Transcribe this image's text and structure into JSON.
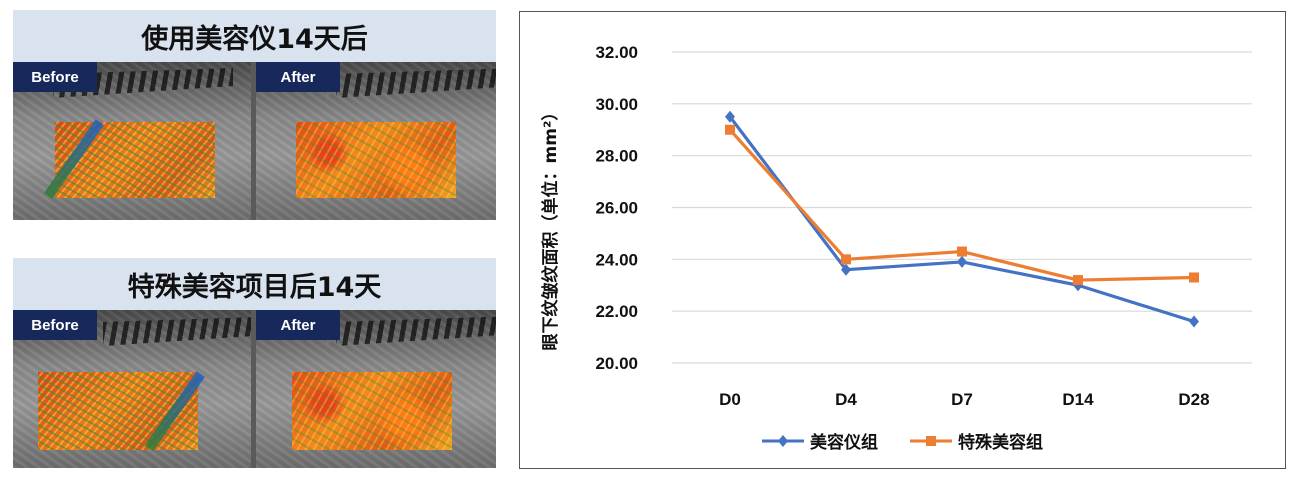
{
  "panels": [
    {
      "title": "使用美容仪14天后",
      "before_label": "Before",
      "after_label": "After"
    },
    {
      "title": "特殊美容项目后14天",
      "before_label": "Before",
      "after_label": "After"
    }
  ],
  "chart_data": {
    "type": "line",
    "categories": [
      "D0",
      "D4",
      "D7",
      "D14",
      "D28"
    ],
    "series": [
      {
        "name": "美容仪组",
        "values": [
          29.5,
          23.6,
          23.9,
          23.0,
          21.6
        ],
        "color": "#4472c4",
        "marker": "diamond"
      },
      {
        "name": "特殊美容组",
        "values": [
          29.0,
          24.0,
          24.3,
          23.2,
          23.3
        ],
        "color": "#ed7d31",
        "marker": "square"
      }
    ],
    "ylabel": "眼下纹皱纹面积（单位：mm²）",
    "ylim": [
      20.0,
      32.0
    ],
    "yticks": [
      "20.00",
      "22.00",
      "24.00",
      "26.00",
      "28.00",
      "30.00",
      "32.00"
    ],
    "grid": true,
    "legend_position": "bottom"
  }
}
